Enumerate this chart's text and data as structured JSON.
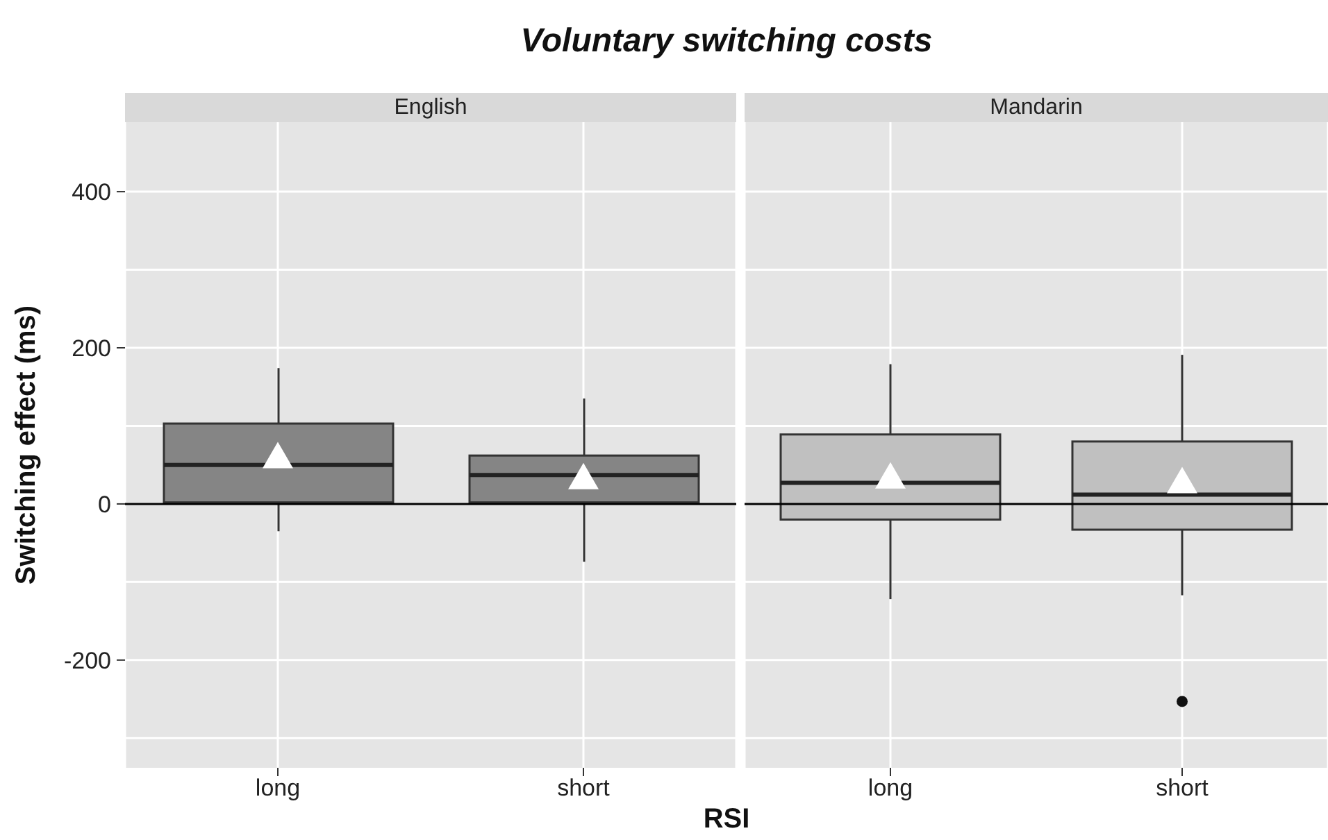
{
  "chart_data": [
    {
      "type": "box",
      "title": "Voluntary switching costs",
      "subtitle": "English",
      "xlabel": "RSI",
      "ylabel": "Switching effect (ms)",
      "categories": [
        "long",
        "short"
      ],
      "series": [
        {
          "color": "#858585",
          "boxes": [
            {
              "low": -35,
              "q1": 2,
              "median": 50,
              "q3": 103,
              "high": 174,
              "mean": 60
            },
            {
              "low": -74,
              "q1": 2,
              "median": 37,
              "q3": 62,
              "high": 135,
              "mean": 33
            }
          ]
        }
      ],
      "ylim": [
        -338,
        489
      ],
      "yticks": [
        {
          "value": -300,
          "label": null
        },
        -200,
        {
          "value": -100,
          "label": null
        },
        0,
        {
          "value": 100,
          "label": null
        },
        200,
        {
          "value": 300,
          "label": null
        },
        400
      ],
      "grid": true,
      "marker": "triangle",
      "ref_lines": [
        {
          "axis": "y",
          "value": 0,
          "color": "#000000"
        }
      ]
    },
    {
      "type": "box",
      "subtitle": "Mandarin",
      "categories": [
        "long",
        "short"
      ],
      "series": [
        {
          "color": "#c0c0c0",
          "boxes": [
            {
              "low": -122,
              "q1": -20,
              "median": 27,
              "q3": 89,
              "high": 179,
              "mean": 34
            },
            {
              "low": -117,
              "q1": -33,
              "median": 12,
              "q3": 80,
              "high": 191,
              "mean": 28,
              "outliers": [
                -253
              ]
            }
          ]
        }
      ],
      "ylim": [
        -338,
        489
      ],
      "yticks": [
        {
          "value": -300,
          "label": null
        },
        -200,
        {
          "value": -100,
          "label": null
        },
        0,
        {
          "value": 100,
          "label": null
        },
        200,
        {
          "value": 300,
          "label": null
        },
        400
      ],
      "grid": true,
      "marker": "triangle",
      "tick_labels": "x",
      "ref_lines": [
        {
          "axis": "y",
          "value": 0,
          "color": "#000000"
        }
      ]
    }
  ]
}
